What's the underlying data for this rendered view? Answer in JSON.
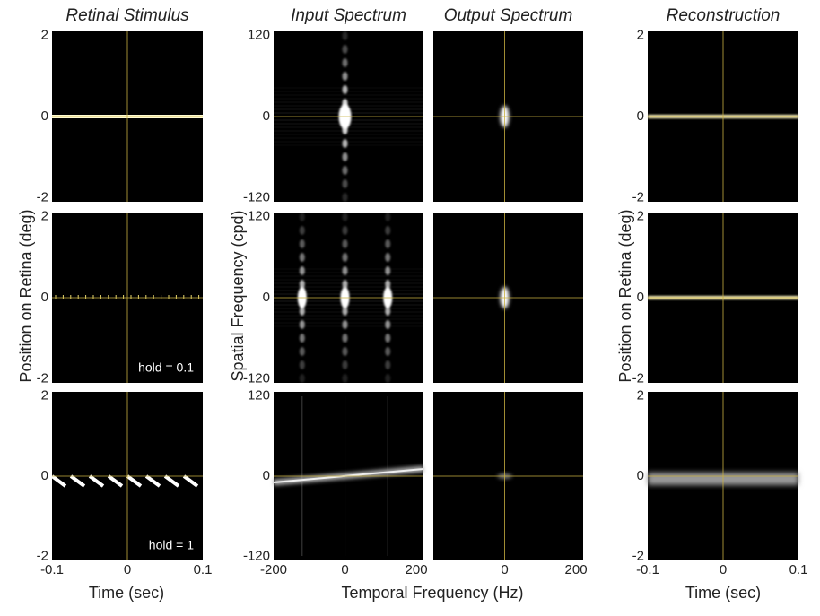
{
  "chart_data": [
    {
      "type": "image",
      "title": "Retinal Stimulus",
      "xlim": [
        -0.1,
        0.1
      ],
      "ylim": [
        -2.1,
        2.1
      ],
      "yticks": [
        2,
        0,
        -2
      ]
    },
    {
      "type": "image",
      "title": "Input Spectrum",
      "xlim": [
        -200,
        220
      ],
      "ylim": [
        -126,
        126
      ],
      "yticks": [
        120,
        0,
        -120
      ]
    },
    {
      "type": "image",
      "title": "Output Spectrum",
      "xlim": [
        -200,
        220
      ],
      "ylim": [
        -126,
        126
      ]
    },
    {
      "type": "image",
      "title": "Reconstruction",
      "xlim": [
        -0.1,
        0.1
      ],
      "ylim": [
        -2.1,
        2.1
      ],
      "yticks": [
        2,
        0,
        -2
      ]
    },
    {
      "type": "image",
      "ylabel": "Position on Retina (deg)",
      "annotation": "hold = 0.1",
      "xlim": [
        -0.1,
        0.1
      ],
      "ylim": [
        -2.1,
        2.1
      ],
      "yticks": [
        2,
        0,
        -2
      ]
    },
    {
      "type": "image",
      "ylabel": "Spatial Frequency (cpd)",
      "xlim": [
        -200,
        220
      ],
      "ylim": [
        -126,
        126
      ],
      "yticks": [
        120,
        0,
        -120
      ]
    },
    {
      "type": "image",
      "xlim": [
        -200,
        220
      ],
      "ylim": [
        -126,
        126
      ]
    },
    {
      "type": "image",
      "ylabel": "Position on Retina (deg)",
      "xlim": [
        -0.1,
        0.1
      ],
      "ylim": [
        -2.1,
        2.1
      ],
      "yticks": [
        2,
        0,
        -2
      ]
    },
    {
      "type": "image",
      "xlabel": "Time (sec)",
      "annotation": "hold = 1",
      "xlim": [
        -0.1,
        0.1
      ],
      "ylim": [
        -2.1,
        2.1
      ],
      "xticks": [
        -0.1,
        0,
        0.1
      ],
      "yticks": [
        2,
        0,
        -2
      ]
    },
    {
      "type": "image",
      "xlabel": "Temporal Frequency (Hz)",
      "xlim": [
        -200,
        220
      ],
      "ylim": [
        -126,
        126
      ],
      "xticks": [
        -200,
        0,
        200
      ],
      "yticks": [
        120,
        0,
        -120
      ]
    },
    {
      "type": "image",
      "xlim": [
        -200,
        220
      ],
      "ylim": [
        -126,
        126
      ],
      "xticks": [
        0,
        200
      ]
    },
    {
      "type": "image",
      "xlabel": "Time (sec)",
      "xlim": [
        -0.1,
        0.1
      ],
      "ylim": [
        -2.1,
        2.1
      ],
      "xticks": [
        -0.1,
        0,
        0.1
      ],
      "yticks": [
        2,
        0,
        -2
      ]
    }
  ]
}
